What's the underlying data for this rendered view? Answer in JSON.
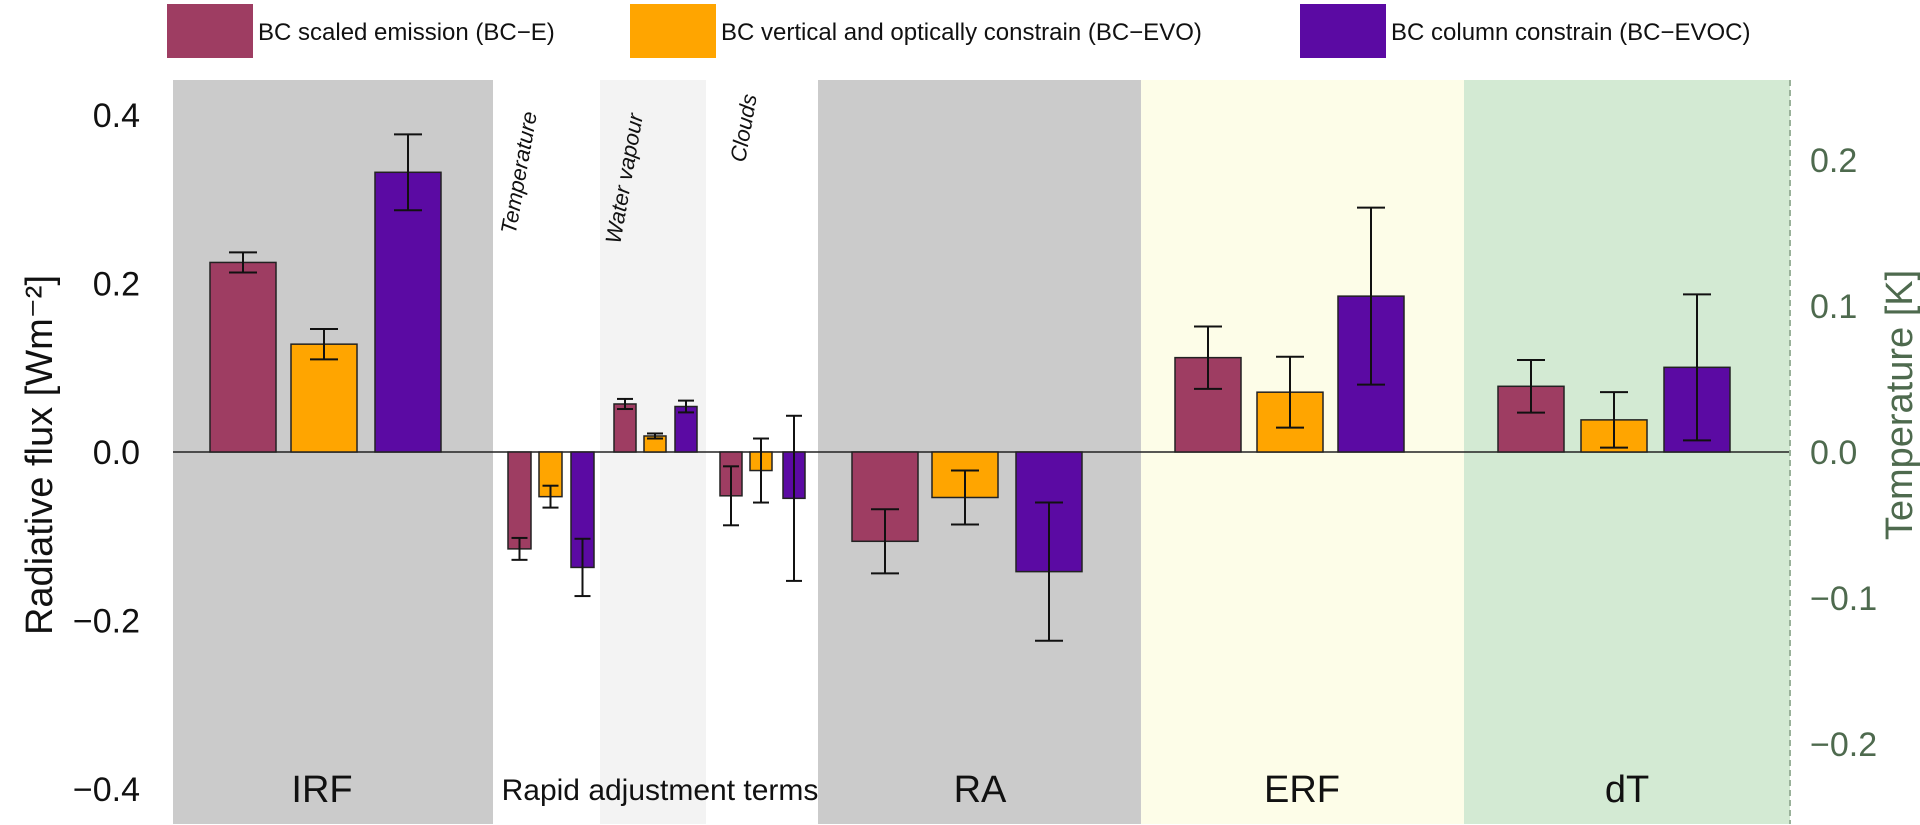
{
  "chart_data": {
    "type": "bar",
    "ylabel_left": "Radiative flux [Wm⁻²]",
    "ylabel_right": "Temperature [K]",
    "ylim_left": [
      -0.45,
      0.45
    ],
    "ylim_right": [
      -0.235,
      0.235
    ],
    "yticks_left": [
      {
        "value": 0.4,
        "label": "0.4"
      },
      {
        "value": 0.2,
        "label": "0.2"
      },
      {
        "value": 0.0,
        "label": "0.0"
      },
      {
        "value": -0.2,
        "label": "−0.2"
      },
      {
        "value": -0.4,
        "label": "−0.4"
      }
    ],
    "yticks_right": [
      {
        "value": 0.2,
        "label": "0.2"
      },
      {
        "value": 0.1,
        "label": "0.1"
      },
      {
        "value": 0.0,
        "label": "0.0"
      },
      {
        "value": -0.1,
        "label": "−0.1"
      },
      {
        "value": -0.2,
        "label": "−0.2"
      }
    ],
    "legend": [
      {
        "name": "BC scaled emission (BC−E)",
        "color": "#9e3d62"
      },
      {
        "name": "BC vertical and optically constrain (BC−EVO)",
        "color": "#ffa500"
      },
      {
        "name": "BC column constrain (BC−EVOC)",
        "color": "#5b0aa3"
      }
    ],
    "panel_colors": {
      "gray": "#cbcbcb",
      "light_gray": "#f3f3f3",
      "white": "#ffffff",
      "yellow": "#fdfde8",
      "green": "#d3ead3"
    },
    "groups": [
      {
        "key": "irf",
        "label": "IRF",
        "axis": "left",
        "values": [
          0.225,
          0.128,
          0.332
        ],
        "errors": [
          0.012,
          0.018,
          0.045
        ]
      },
      {
        "key": "temperature",
        "label": "Temperature",
        "axis": "left",
        "values": [
          -0.115,
          -0.053,
          -0.137
        ],
        "errors": [
          0.013,
          0.013,
          0.034
        ]
      },
      {
        "key": "water_vapour",
        "label": "Water vapour",
        "axis": "left",
        "values": [
          0.057,
          0.019,
          0.054
        ],
        "errors": [
          0.006,
          0.003,
          0.007
        ]
      },
      {
        "key": "clouds",
        "label": "Clouds",
        "axis": "left",
        "values": [
          -0.052,
          -0.022,
          -0.055
        ],
        "errors": [
          0.035,
          0.038,
          0.098
        ]
      },
      {
        "key": "ra",
        "label": "RA",
        "axis": "left",
        "values": [
          -0.106,
          -0.054,
          -0.142
        ],
        "errors": [
          0.038,
          0.032,
          0.082
        ]
      },
      {
        "key": "erf",
        "label": "ERF",
        "axis": "left",
        "values": [
          0.112,
          0.071,
          0.185
        ],
        "errors": [
          0.037,
          0.042,
          0.105
        ]
      },
      {
        "key": "dt",
        "label": "dT",
        "axis": "right",
        "values": [
          0.045,
          0.022,
          0.058
        ],
        "errors": [
          0.018,
          0.019,
          0.05
        ]
      }
    ],
    "rapid_adjustment_label": "Rapid adjustment terms"
  }
}
